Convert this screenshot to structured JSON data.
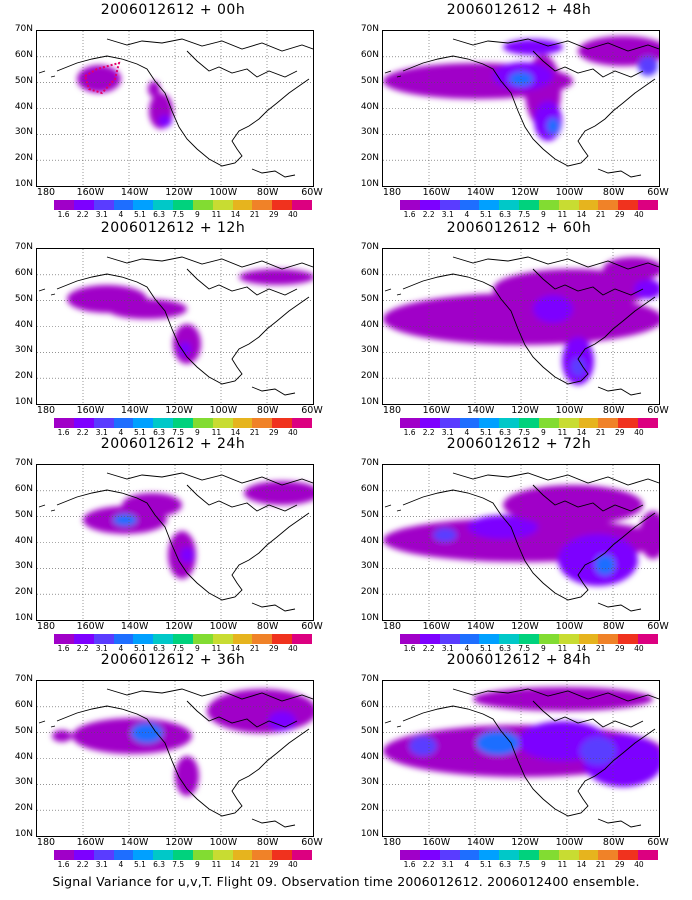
{
  "caption": "Signal Variance for u,v,T. Flight 09. Observation time 2006012612. 2006012400 ensemble.",
  "lat_labels": [
    "70N",
    "60N",
    "50N",
    "40N",
    "30N",
    "20N",
    "10N"
  ],
  "lon_labels": [
    "180",
    "160W",
    "140W",
    "120W",
    "100W",
    "80W",
    "60W"
  ],
  "colorbar": {
    "labels": [
      "1.6",
      "2.2",
      "3.1",
      "4",
      "5.1",
      "6.3",
      "7.5",
      "9",
      "11",
      "14",
      "21",
      "29",
      "40"
    ],
    "colors": [
      "#a000c8",
      "#7d00ff",
      "#5a3cff",
      "#1e6eff",
      "#00a0ff",
      "#00c8c8",
      "#00d27d",
      "#82dc32",
      "#c8dc32",
      "#e6b41e",
      "#f08228",
      "#f0321e",
      "#dc0080"
    ]
  },
  "panels": [
    {
      "title": "2006012612 + 00h"
    },
    {
      "title": "2006012612 + 48h"
    },
    {
      "title": "2006012612 + 12h"
    },
    {
      "title": "2006012612 + 60h"
    },
    {
      "title": "2006012612 + 24h"
    },
    {
      "title": "2006012612 + 72h"
    },
    {
      "title": "2006012612 + 36h"
    },
    {
      "title": "2006012612 + 84h"
    }
  ]
}
